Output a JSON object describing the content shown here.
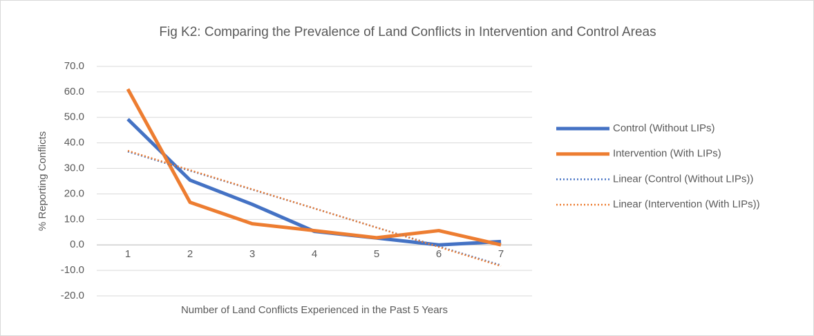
{
  "chart_data": {
    "type": "line",
    "title": "Fig K2: Comparing the Prevalence of Land Conflicts in Intervention and Control Areas",
    "x_label": "Number of Land Conflicts Experienced in the Past 5 Years",
    "y_label": "% Reporting Conflicts",
    "categories": [
      "1",
      "2",
      "3",
      "4",
      "5",
      "6",
      "7"
    ],
    "series": [
      {
        "name": "Control (Without LIPs)",
        "color": "#4472c4",
        "style": "solid",
        "values": [
          49.3,
          25.4,
          15.9,
          5.3,
          2.7,
          0.0,
          1.3
        ]
      },
      {
        "name": "Intervention (With LIPs)",
        "color": "#ed7d31",
        "style": "solid",
        "values": [
          61.1,
          16.7,
          8.3,
          5.6,
          2.8,
          5.6,
          0.0
        ]
      },
      {
        "name": "Linear (Control (Without LIPs))",
        "color": "#4472c4",
        "style": "dotted",
        "values": [
          36.6,
          29.1,
          21.7,
          14.3,
          6.8,
          -0.6,
          -8.0
        ]
      },
      {
        "name": "Linear (Intervention (With LIPs))",
        "color": "#ed7d31",
        "style": "dotted",
        "values": [
          36.9,
          29.3,
          21.8,
          14.3,
          6.8,
          -0.8,
          -8.3
        ]
      }
    ],
    "ylim": [
      -20,
      70
    ],
    "yticks": [
      {
        "value": -20,
        "label": "-20.0"
      },
      {
        "value": -10,
        "label": "-10.0"
      },
      {
        "value": 0,
        "label": "0.0"
      },
      {
        "value": 10,
        "label": "10.0"
      },
      {
        "value": 20,
        "label": "20.0"
      },
      {
        "value": 30,
        "label": "30.0"
      },
      {
        "value": 40,
        "label": "40.0"
      },
      {
        "value": 50,
        "label": "50.0"
      },
      {
        "value": 60,
        "label": "60.0"
      },
      {
        "value": 70,
        "label": "70.0"
      }
    ],
    "grid": true,
    "legend": "right"
  }
}
